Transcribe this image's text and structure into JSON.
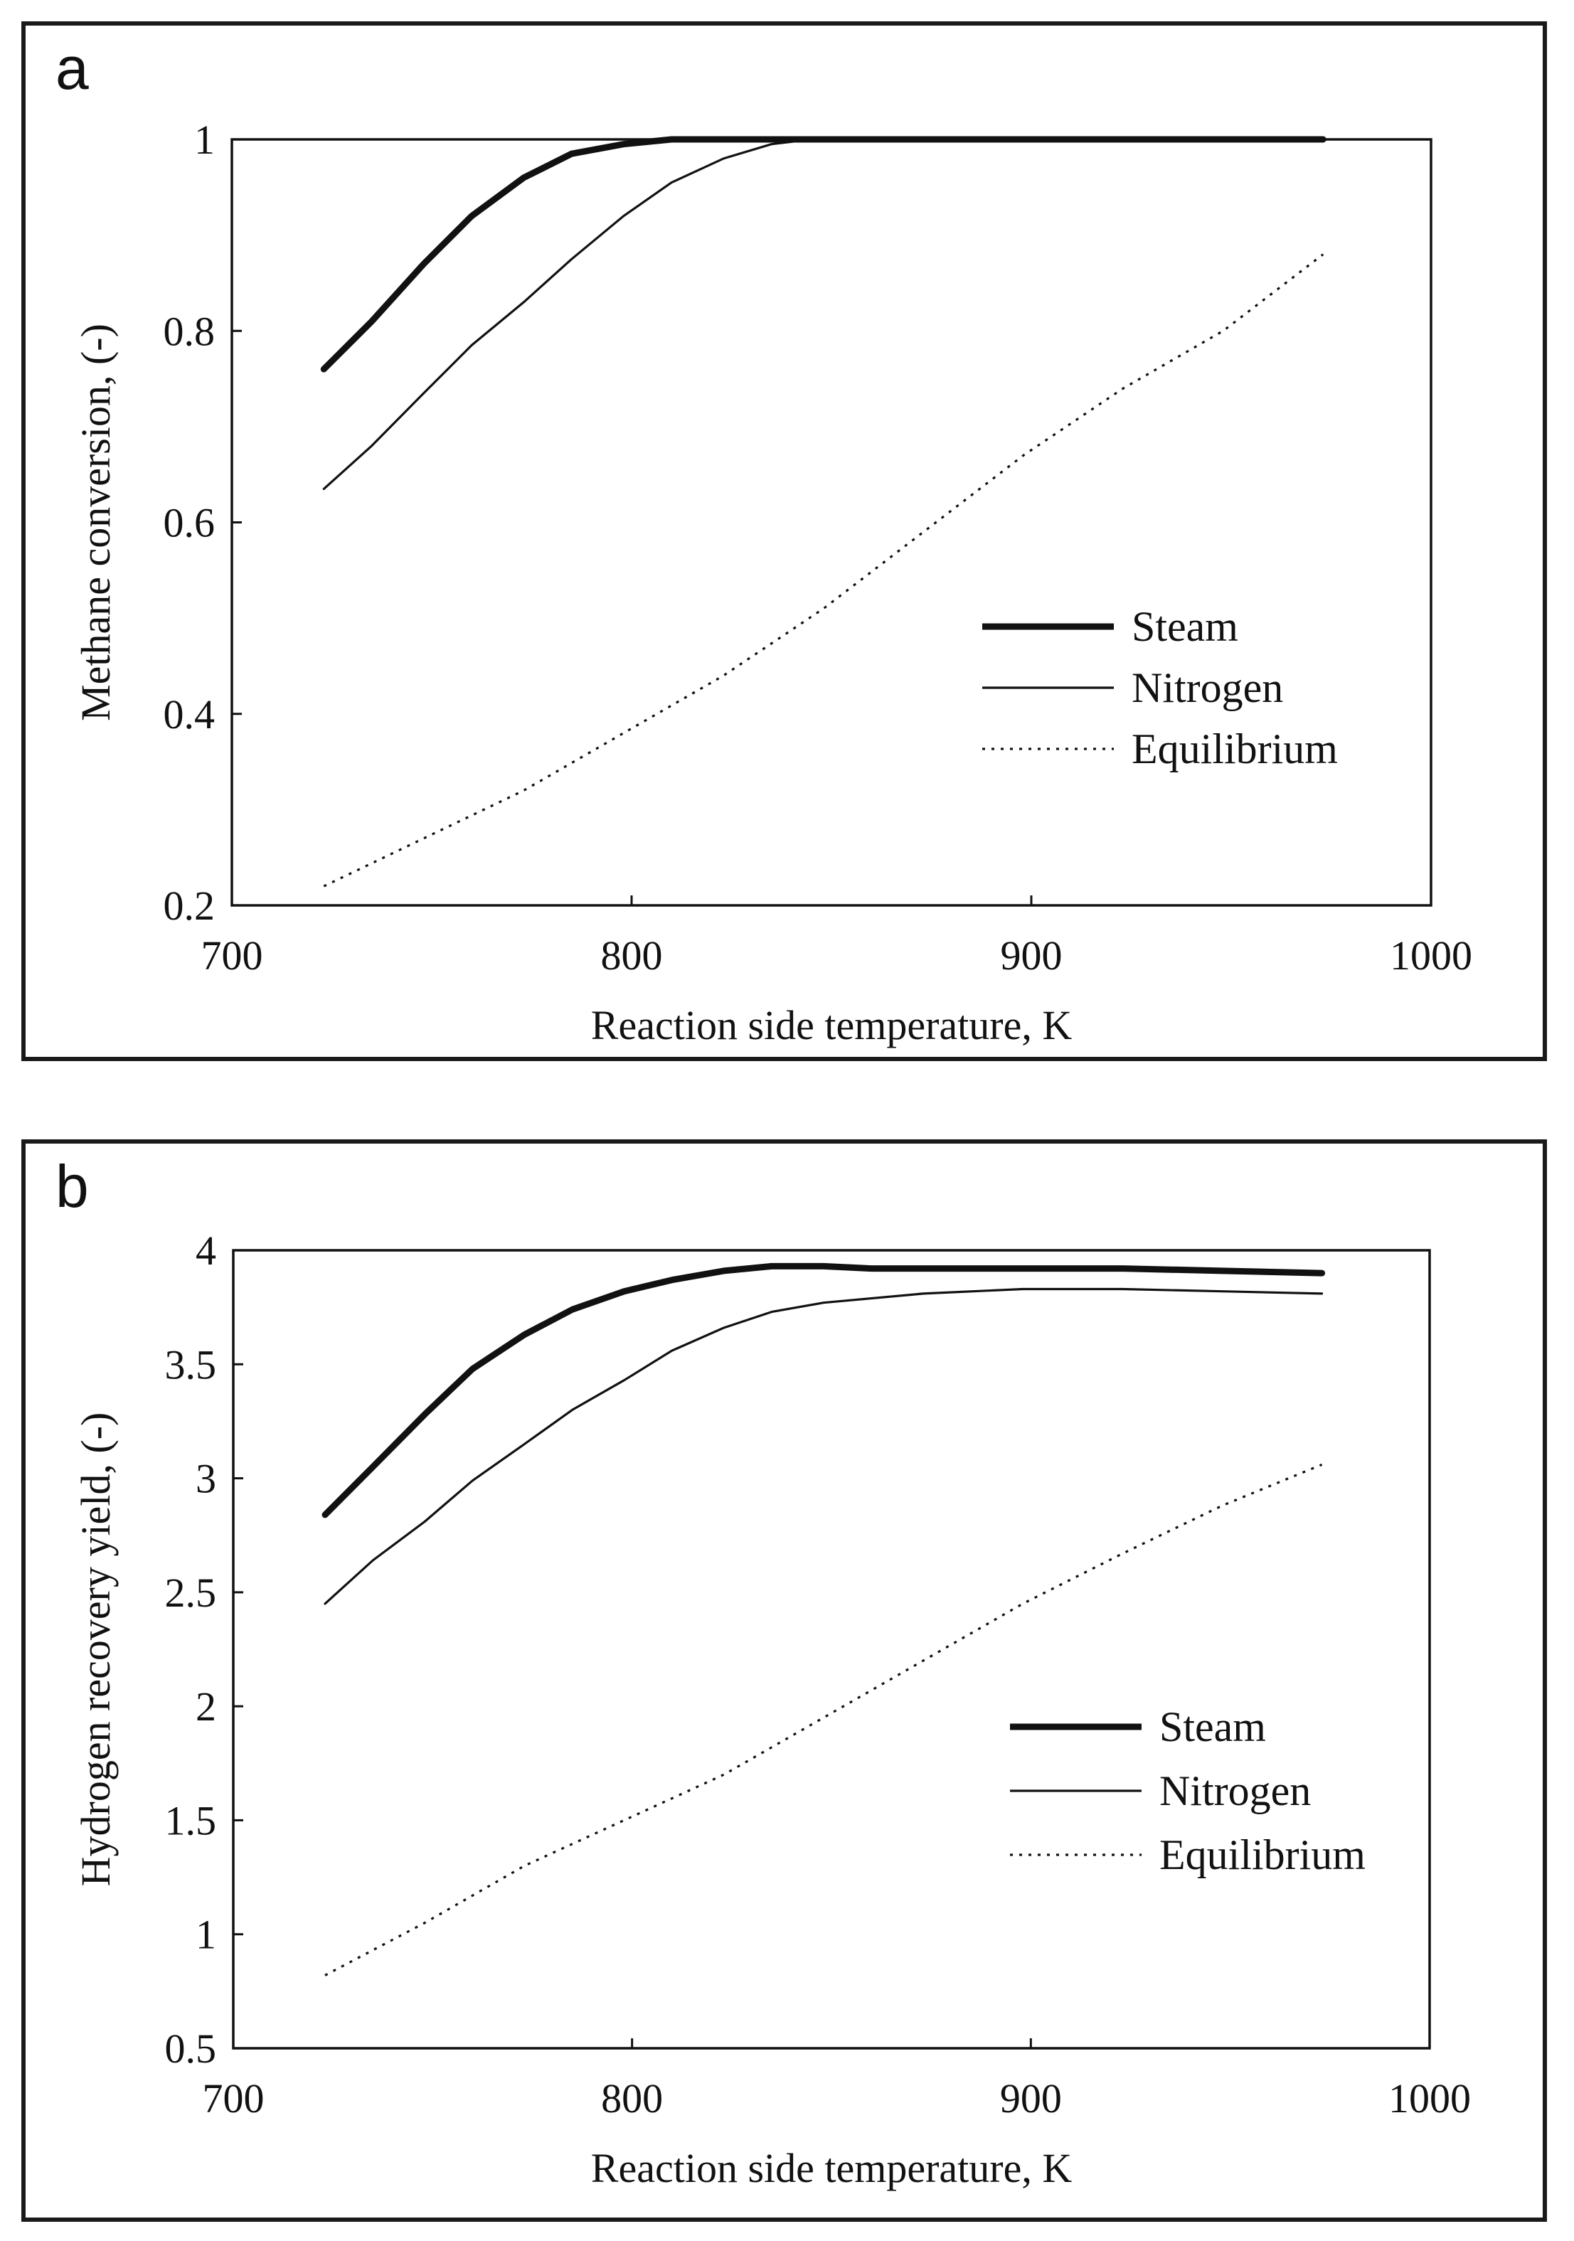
{
  "chart_data": [
    {
      "id": "a",
      "type": "line",
      "panel_label": "a",
      "title": "",
      "xlabel": "Reaction side temperature, K",
      "ylabel": "Methane conversion, (-)",
      "xlim": [
        700,
        1000
      ],
      "ylim": [
        0.2,
        1
      ],
      "xticks": [
        700,
        800,
        900,
        1000
      ],
      "yticks": [
        0.2,
        0.4,
        0.6,
        0.8,
        1
      ],
      "xtick_labels": [
        "700",
        "800",
        "900",
        "1000"
      ],
      "ytick_labels": [
        "0.2",
        "0.4",
        "0.6",
        "0.8",
        "1"
      ],
      "grid": false,
      "legend_position": "lower-right",
      "series": [
        {
          "name": "Steam",
          "style": "thick",
          "x": [
            723,
            735,
            748,
            760,
            773,
            785,
            798,
            810,
            823,
            848,
            873,
            898,
            923,
            948,
            973
          ],
          "y": [
            0.76,
            0.81,
            0.87,
            0.92,
            0.96,
            0.985,
            0.995,
            1.0,
            1.0,
            1.0,
            1.0,
            1.0,
            1.0,
            1.0,
            1.0
          ]
        },
        {
          "name": "Nitrogen",
          "style": "thin",
          "x": [
            723,
            735,
            748,
            760,
            773,
            785,
            798,
            810,
            823,
            835,
            845,
            873,
            898,
            923,
            948,
            973
          ],
          "y": [
            0.635,
            0.68,
            0.735,
            0.785,
            0.83,
            0.875,
            0.92,
            0.955,
            0.98,
            0.995,
            1.0,
            1.0,
            1.0,
            1.0,
            1.0,
            1.0
          ]
        },
        {
          "name": "Equilibrium",
          "style": "dotted",
          "x": [
            723,
            748,
            773,
            798,
            823,
            848,
            873,
            898,
            923,
            948,
            973
          ],
          "y": [
            0.22,
            0.27,
            0.32,
            0.38,
            0.44,
            0.51,
            0.59,
            0.67,
            0.74,
            0.8,
            0.88
          ]
        }
      ]
    },
    {
      "id": "b",
      "type": "line",
      "panel_label": "b",
      "title": "",
      "xlabel": "Reaction side temperature, K",
      "ylabel": "Hydrogen recovery yield, (-)",
      "xlim": [
        700,
        1000
      ],
      "ylim": [
        0.5,
        4
      ],
      "xticks": [
        700,
        800,
        900,
        1000
      ],
      "yticks": [
        0.5,
        1,
        1.5,
        2,
        2.5,
        3,
        3.5,
        4
      ],
      "xtick_labels": [
        "700",
        "800",
        "900",
        "1000"
      ],
      "ytick_labels": [
        "0.5",
        "1",
        "1.5",
        "2",
        "2.5",
        "3",
        "3.5",
        "4"
      ],
      "grid": false,
      "legend_position": "lower-right",
      "series": [
        {
          "name": "Steam",
          "style": "thick",
          "x": [
            723,
            735,
            748,
            760,
            773,
            785,
            798,
            810,
            823,
            835,
            848,
            860,
            873,
            898,
            923,
            948,
            973
          ],
          "y": [
            2.84,
            3.05,
            3.28,
            3.48,
            3.63,
            3.74,
            3.82,
            3.87,
            3.91,
            3.93,
            3.93,
            3.92,
            3.92,
            3.92,
            3.92,
            3.91,
            3.9
          ]
        },
        {
          "name": "Nitrogen",
          "style": "thin",
          "x": [
            723,
            735,
            748,
            760,
            773,
            785,
            798,
            810,
            823,
            835,
            848,
            873,
            898,
            923,
            948,
            973
          ],
          "y": [
            2.45,
            2.64,
            2.81,
            2.99,
            3.15,
            3.3,
            3.43,
            3.56,
            3.66,
            3.73,
            3.77,
            3.81,
            3.83,
            3.83,
            3.82,
            3.81
          ]
        },
        {
          "name": "Equilibrium",
          "style": "dotted",
          "x": [
            723,
            748,
            773,
            798,
            823,
            848,
            873,
            898,
            923,
            948,
            973
          ],
          "y": [
            0.82,
            1.05,
            1.3,
            1.5,
            1.7,
            1.95,
            2.2,
            2.45,
            2.67,
            2.88,
            3.06
          ]
        }
      ]
    }
  ]
}
